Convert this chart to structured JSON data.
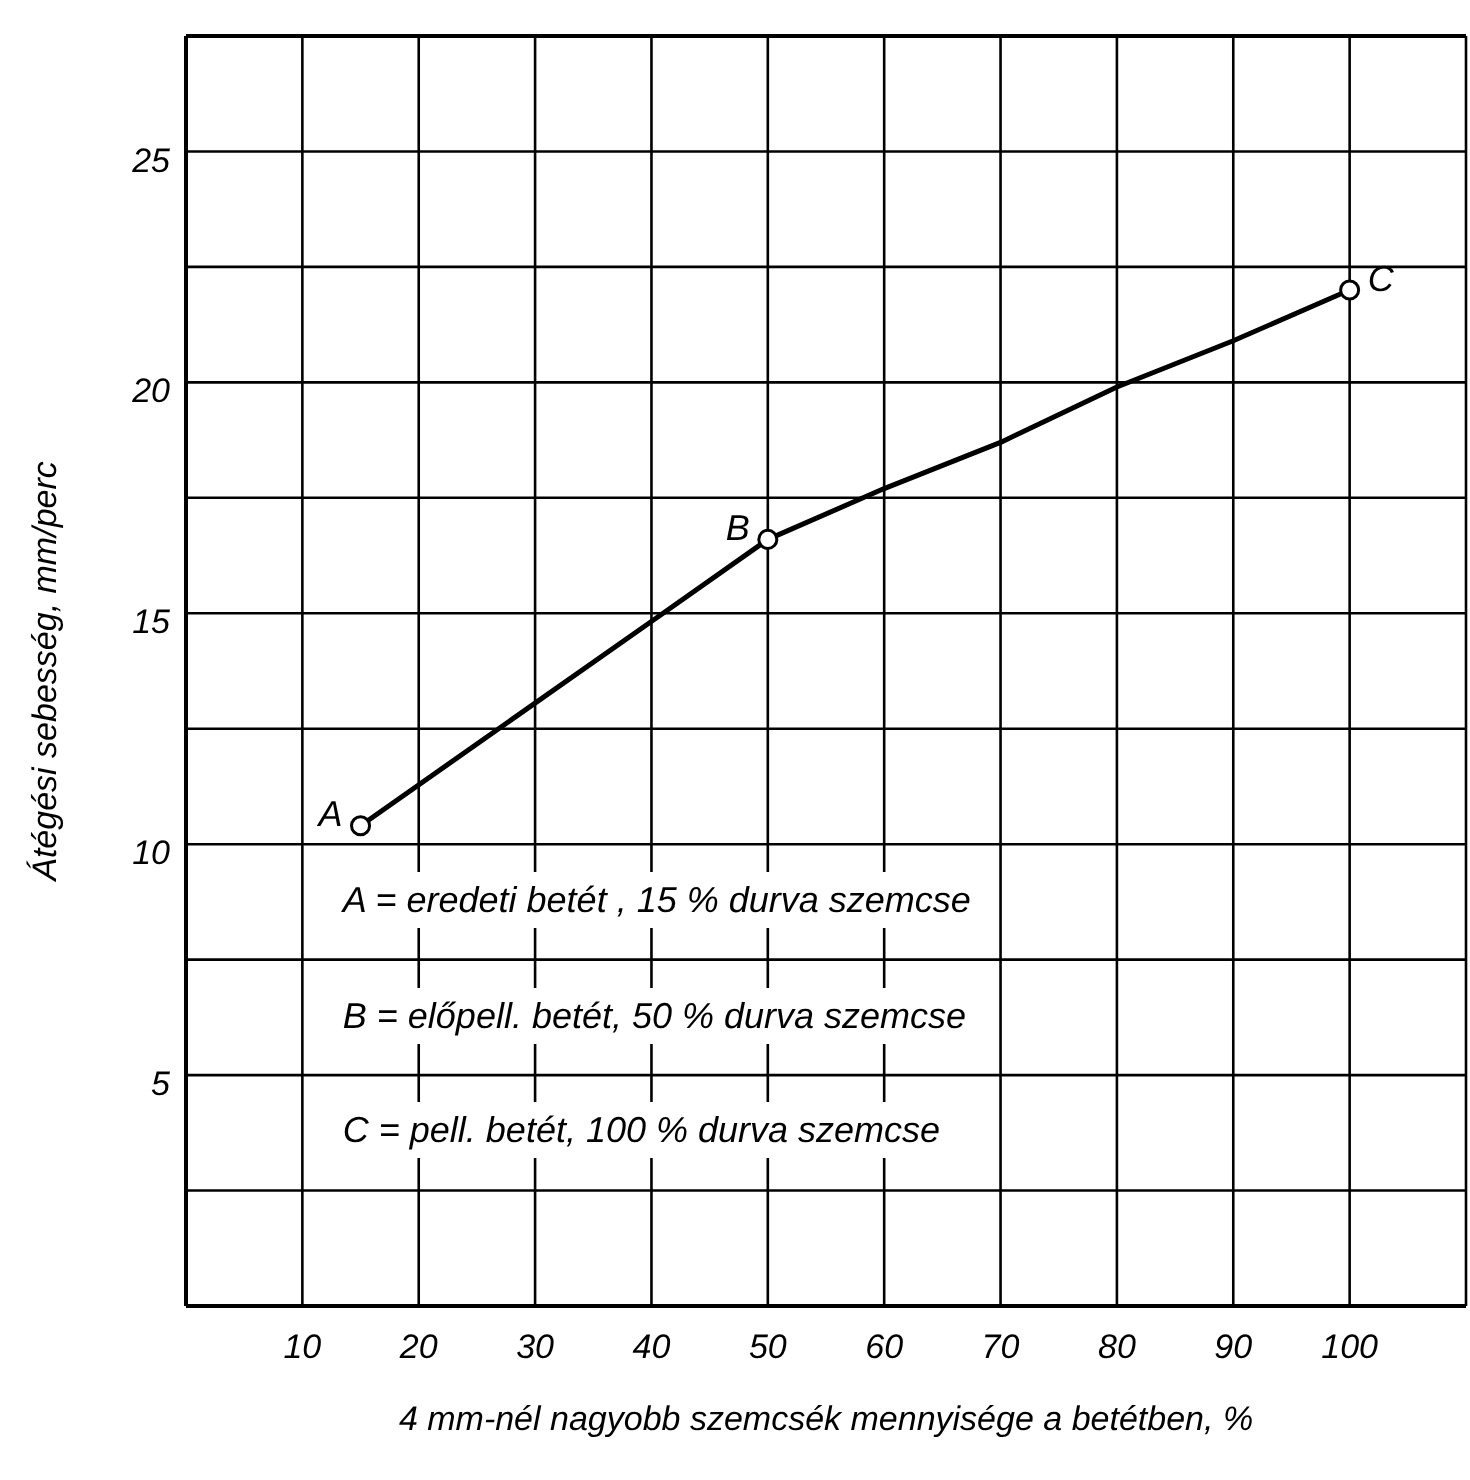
{
  "chart_data": {
    "type": "line",
    "xlabel": "4 mm-nél nagyobb szemcsék mennyisége a betétben, %",
    "ylabel": "Átégési sebesség, mm/perc",
    "xlim": [
      0,
      110
    ],
    "ylim": [
      0,
      27.5
    ],
    "xticks": [
      {
        "value": 0,
        "label": null
      },
      10,
      20,
      30,
      40,
      50,
      60,
      70,
      80,
      90,
      100,
      {
        "value": 110,
        "label": null
      }
    ],
    "yticks": [
      {
        "value": 0,
        "label": null
      },
      {
        "value": 2.5,
        "label": null
      },
      5,
      {
        "value": 7.5,
        "label": null
      },
      10,
      {
        "value": 12.5,
        "label": null
      },
      15,
      {
        "value": 17.5,
        "label": null
      },
      20,
      {
        "value": 22.5,
        "label": null
      },
      25
    ],
    "grid": true,
    "series": [
      {
        "color": "#000000",
        "marker": "none",
        "line_style": "solid",
        "x": [
          15,
          41,
          50,
          60,
          70,
          80,
          90,
          100
        ],
        "values": [
          10.4,
          15,
          16.6,
          17.7,
          18.7,
          19.9,
          20.9,
          22.0
        ]
      },
      {
        "type": "scatter",
        "color": "#000000",
        "marker": "circle",
        "x": [
          15,
          50,
          100
        ],
        "values": [
          10.4,
          16.6,
          22.0
        ]
      }
    ],
    "annotations": [
      {
        "text": "A",
        "x": 15,
        "y": 10.4
      },
      {
        "text": "B",
        "x": 50,
        "y": 16.6
      },
      {
        "text": "C",
        "x": 100,
        "y": 22.0
      },
      "A = eredeti betét , 15 % durva szemcse",
      "B = előpell. betét, 50 % durva szemcse",
      "C = pell. betét, 100 % durva szemcse"
    ]
  }
}
